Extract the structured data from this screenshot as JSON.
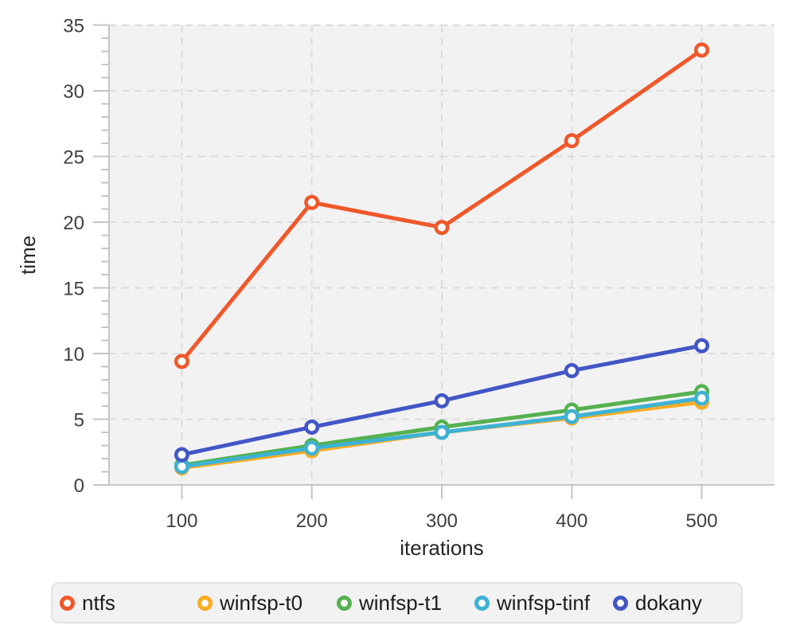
{
  "chart_data": {
    "type": "line",
    "title": "",
    "xlabel": "iterations",
    "ylabel": "time",
    "x": [
      100,
      200,
      300,
      400,
      500
    ],
    "xlim": [
      44,
      556
    ],
    "ylim": [
      0,
      35
    ],
    "xticks": [
      100,
      200,
      300,
      400,
      500
    ],
    "yticks": [
      0,
      5,
      10,
      15,
      20,
      25,
      30,
      35
    ],
    "y_minor_tick_step": 1,
    "grid": "dashed",
    "legend_position": "bottom",
    "colors": {
      "plot_background": "#f2f2f3",
      "grid_line": "#dcdcdc",
      "axis_line": "#c5c5c5",
      "tick_label": "#3f3f3f",
      "axis_title": "#262626",
      "marker_fill": "#ffffff"
    },
    "series": [
      {
        "name": "ntfs",
        "color": "#f0582a",
        "values": [
          9.4,
          21.5,
          19.6,
          26.2,
          33.1
        ]
      },
      {
        "name": "winfsp-t0",
        "color": "#fbac21",
        "values": [
          1.3,
          2.6,
          4.0,
          5.1,
          6.3
        ]
      },
      {
        "name": "winfsp-t1",
        "color": "#55b14f",
        "values": [
          1.5,
          3.0,
          4.4,
          5.7,
          7.1
        ]
      },
      {
        "name": "winfsp-tinf",
        "color": "#3db2d4",
        "values": [
          1.4,
          2.8,
          4.0,
          5.2,
          6.6
        ]
      },
      {
        "name": "dokany",
        "color": "#4356c6",
        "values": [
          2.3,
          4.4,
          6.4,
          8.7,
          10.6
        ]
      }
    ]
  }
}
